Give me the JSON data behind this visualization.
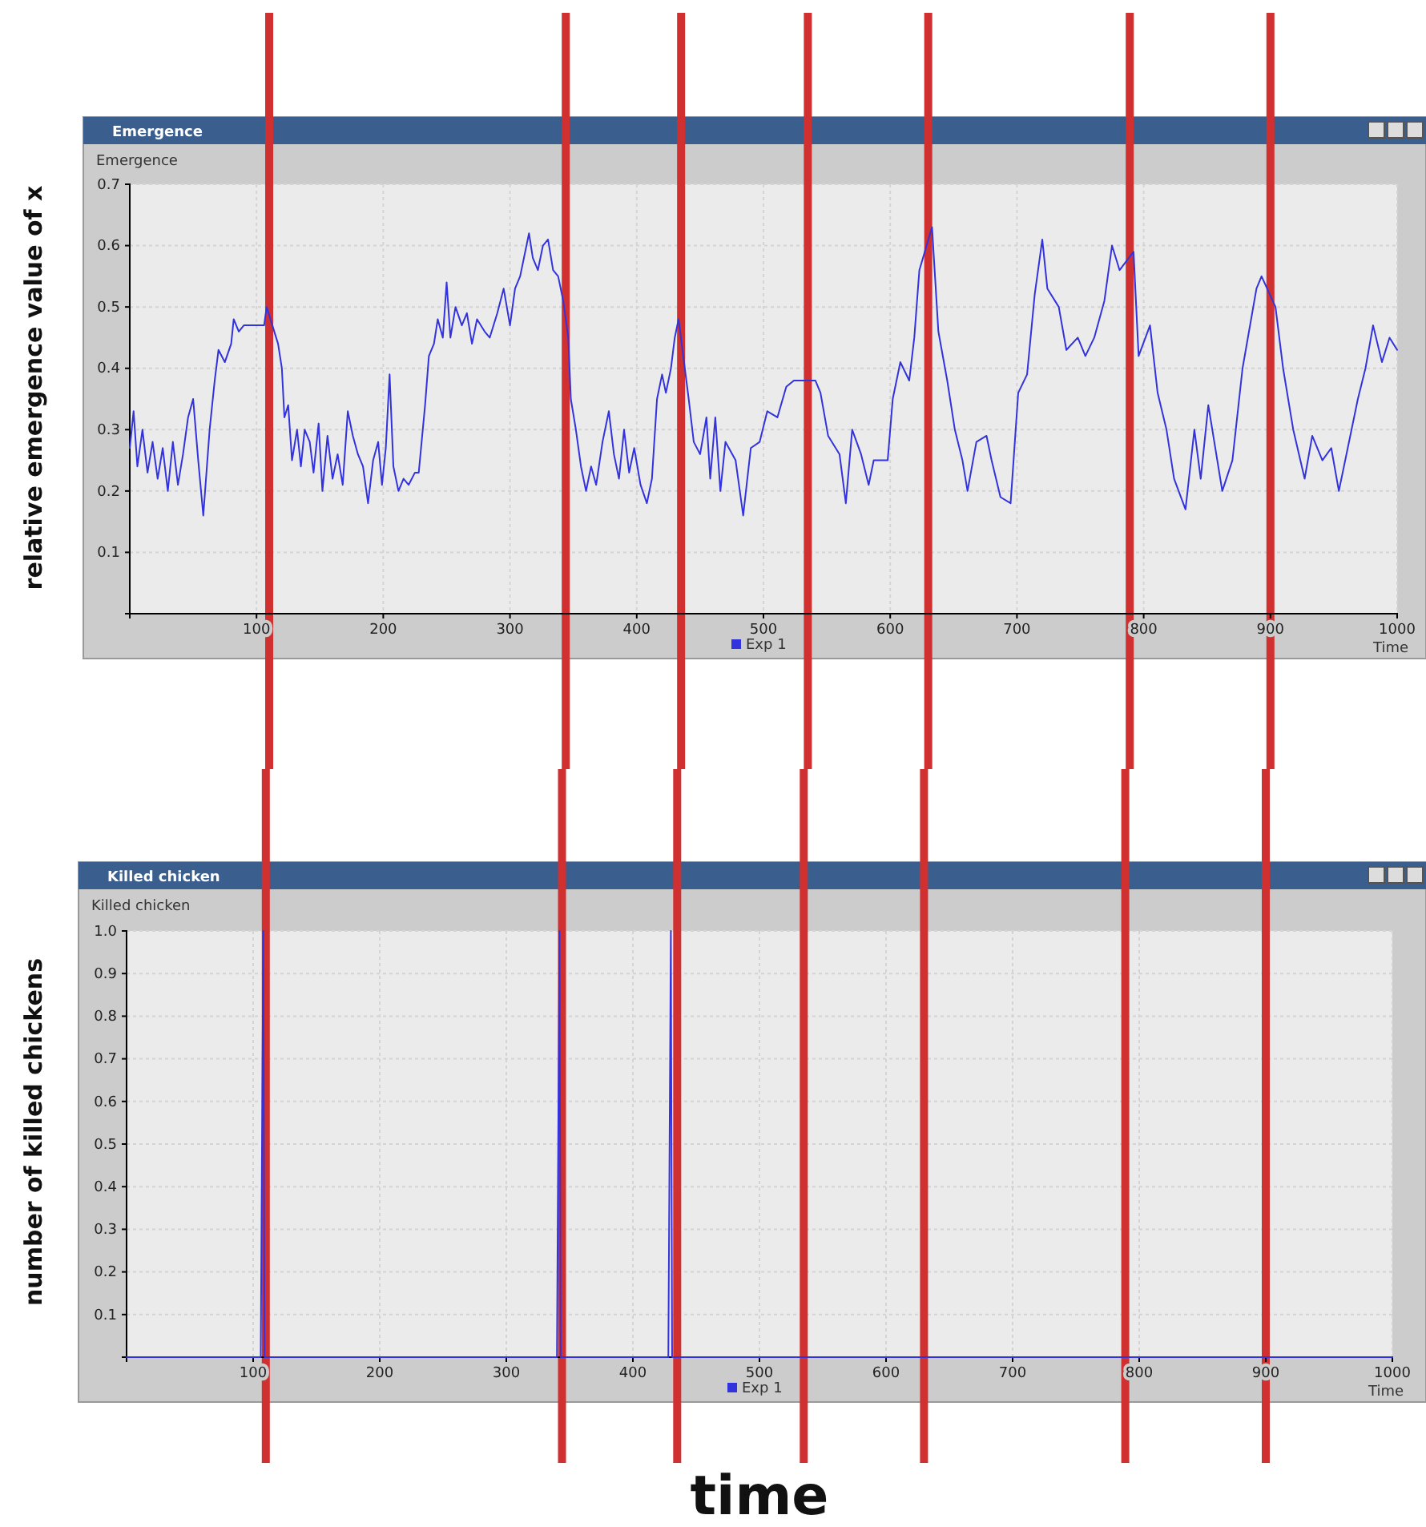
{
  "chart_data": [
    {
      "type": "line",
      "title": "Emergence",
      "subtitle": "Emergence",
      "xlabel": "Time",
      "ylabel": "relative emergence value of x",
      "xlim": [
        0,
        1000
      ],
      "xticks": [
        100,
        200,
        300,
        400,
        500,
        600,
        700,
        800,
        900,
        1000
      ],
      "ylim": [
        0,
        0.7
      ],
      "yticks": [
        0.1,
        0.2,
        0.3,
        0.4,
        0.5,
        0.6,
        0.7
      ],
      "grid": true,
      "legend": "bottom",
      "series": [
        {
          "name": "Exp 1",
          "color": "#3333dd",
          "x": [
            0,
            3,
            6,
            10,
            14,
            18,
            22,
            26,
            30,
            34,
            38,
            42,
            46,
            50,
            54,
            58,
            63,
            67,
            70,
            75,
            80,
            82,
            86,
            90,
            100,
            106,
            108,
            117,
            120,
            122,
            125,
            128,
            132,
            135,
            138,
            142,
            145,
            149,
            152,
            156,
            160,
            164,
            168,
            172,
            176,
            180,
            184,
            188,
            192,
            196,
            199,
            202,
            205,
            208,
            212,
            216,
            220,
            225,
            228,
            233,
            236,
            240,
            243,
            247,
            250,
            253,
            257,
            262,
            266,
            270,
            274,
            280,
            284,
            290,
            295,
            300,
            304,
            308,
            312,
            315,
            318,
            322,
            326,
            330,
            334,
            338,
            342,
            346,
            348,
            352,
            356,
            360,
            364,
            368,
            373,
            378,
            382,
            386,
            390,
            394,
            398,
            403,
            408,
            412,
            416,
            420,
            423,
            427,
            430,
            433,
            441,
            445,
            450,
            455,
            458,
            462,
            466,
            470,
            478,
            484,
            490,
            497,
            503,
            511,
            518,
            524,
            528,
            541,
            545,
            551,
            560,
            565,
            570,
            577,
            583,
            587,
            598,
            602,
            608,
            615,
            619,
            623,
            633,
            638,
            645,
            651,
            657,
            661,
            668,
            676,
            680,
            687,
            695,
            701,
            708,
            714,
            720,
            724,
            733,
            739,
            748,
            754,
            761,
            769,
            775,
            781,
            792,
            796,
            805,
            811,
            818,
            824,
            833,
            840,
            845,
            851,
            862,
            870,
            878,
            889,
            893,
            904,
            910,
            918,
            927,
            933,
            941,
            948,
            954,
            963,
            969,
            975,
            981,
            988,
            994,
            1000
          ],
          "values": [
            0.27,
            0.33,
            0.24,
            0.3,
            0.23,
            0.28,
            0.22,
            0.27,
            0.2,
            0.28,
            0.21,
            0.26,
            0.32,
            0.35,
            0.25,
            0.16,
            0.3,
            0.38,
            0.43,
            0.41,
            0.44,
            0.48,
            0.46,
            0.47,
            0.47,
            0.47,
            0.5,
            0.44,
            0.4,
            0.32,
            0.34,
            0.25,
            0.3,
            0.24,
            0.3,
            0.28,
            0.23,
            0.31,
            0.2,
            0.29,
            0.22,
            0.26,
            0.21,
            0.33,
            0.29,
            0.26,
            0.24,
            0.18,
            0.25,
            0.28,
            0.21,
            0.27,
            0.39,
            0.24,
            0.2,
            0.22,
            0.21,
            0.23,
            0.23,
            0.34,
            0.42,
            0.44,
            0.48,
            0.45,
            0.54,
            0.45,
            0.5,
            0.47,
            0.49,
            0.44,
            0.48,
            0.46,
            0.45,
            0.49,
            0.53,
            0.47,
            0.53,
            0.55,
            0.59,
            0.62,
            0.58,
            0.56,
            0.6,
            0.61,
            0.56,
            0.55,
            0.51,
            0.45,
            0.35,
            0.3,
            0.24,
            0.2,
            0.24,
            0.21,
            0.28,
            0.33,
            0.26,
            0.22,
            0.3,
            0.23,
            0.27,
            0.21,
            0.18,
            0.22,
            0.35,
            0.39,
            0.36,
            0.4,
            0.45,
            0.48,
            0.35,
            0.28,
            0.26,
            0.32,
            0.22,
            0.32,
            0.2,
            0.28,
            0.25,
            0.16,
            0.27,
            0.28,
            0.33,
            0.32,
            0.37,
            0.38,
            0.38,
            0.38,
            0.36,
            0.29,
            0.26,
            0.18,
            0.3,
            0.26,
            0.21,
            0.25,
            0.25,
            0.35,
            0.41,
            0.38,
            0.45,
            0.56,
            0.63,
            0.46,
            0.38,
            0.3,
            0.25,
            0.2,
            0.28,
            0.29,
            0.25,
            0.19,
            0.18,
            0.36,
            0.39,
            0.52,
            0.61,
            0.53,
            0.5,
            0.43,
            0.45,
            0.42,
            0.45,
            0.51,
            0.6,
            0.56,
            0.59,
            0.42,
            0.47,
            0.36,
            0.3,
            0.22,
            0.17,
            0.3,
            0.22,
            0.34,
            0.2,
            0.25,
            0.4,
            0.53,
            0.55,
            0.5,
            0.4,
            0.3,
            0.22,
            0.29,
            0.25,
            0.27,
            0.2,
            0.29,
            0.35,
            0.4,
            0.47,
            0.41,
            0.45,
            0.43
          ]
        }
      ],
      "ref_lines": [
        {
          "axis": "x",
          "value": 110,
          "color": "#d03030"
        },
        {
          "axis": "x",
          "value": 344,
          "color": "#d03030"
        },
        {
          "axis": "x",
          "value": 435,
          "color": "#d03030"
        },
        {
          "axis": "x",
          "value": 535,
          "color": "#d03030"
        },
        {
          "axis": "x",
          "value": 630,
          "color": "#d03030"
        },
        {
          "axis": "x",
          "value": 789,
          "color": "#d03030"
        },
        {
          "axis": "x",
          "value": 900,
          "color": "#d03030"
        }
      ]
    },
    {
      "type": "line",
      "title": "Killed chicken",
      "subtitle": "Killed chicken",
      "xlabel": "Time",
      "ylabel": "number of killed chickens",
      "xlim": [
        0,
        1000
      ],
      "xticks": [
        100,
        200,
        300,
        400,
        500,
        600,
        700,
        800,
        900,
        1000
      ],
      "ylim": [
        0,
        1
      ],
      "yticks": [
        0.1,
        0.2,
        0.3,
        0.4,
        0.5,
        0.6,
        0.7,
        0.8,
        0.9,
        {
          "value": 1,
          "label": "1.0"
        }
      ],
      "grid": true,
      "legend": "bottom",
      "annotations": [
        "time"
      ],
      "series": [
        {
          "name": "Exp 1",
          "color": "#3333dd",
          "x": [
            0,
            106,
            107,
            108,
            109,
            340,
            341,
            342,
            343,
            428,
            429,
            430,
            431,
            1000
          ],
          "values": [
            0,
            0,
            0.5,
            1,
            0,
            0,
            0.5,
            1,
            0,
            0,
            0.5,
            1,
            0,
            0
          ]
        }
      ],
      "ref_lines": [
        {
          "axis": "x",
          "value": 110,
          "color": "#d03030"
        },
        {
          "axis": "x",
          "value": 344,
          "color": "#d03030"
        },
        {
          "axis": "x",
          "value": 435,
          "color": "#d03030"
        },
        {
          "axis": "x",
          "value": 535,
          "color": "#d03030"
        },
        {
          "axis": "x",
          "value": 630,
          "color": "#d03030"
        },
        {
          "axis": "x",
          "value": 789,
          "color": "#d03030"
        },
        {
          "axis": "x",
          "value": 900,
          "color": "#d03030"
        }
      ]
    }
  ]
}
